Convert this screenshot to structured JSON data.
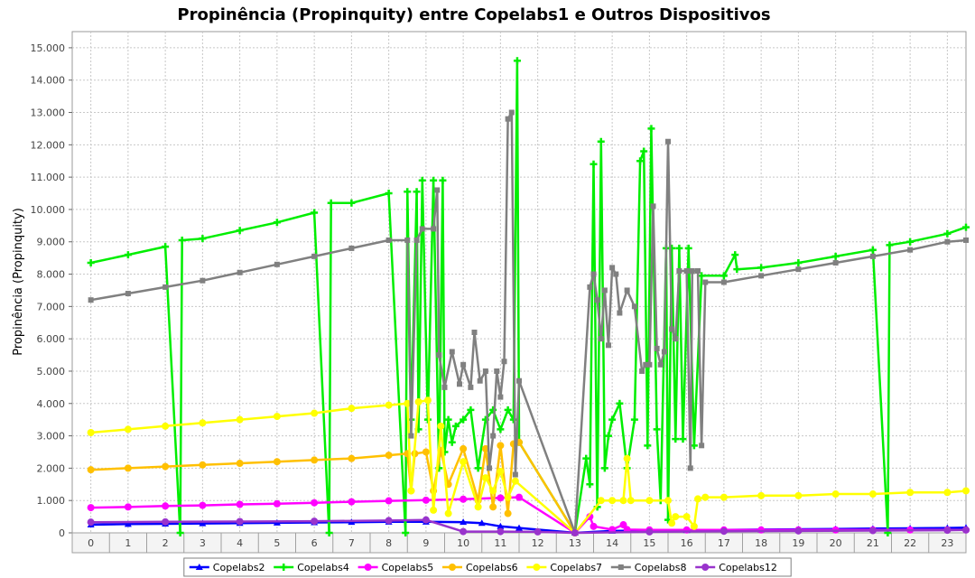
{
  "chart_data": {
    "type": "line",
    "title": "Propinência (Propinquity) entre Copelabs1 e Outros Dispositivos",
    "xlabel": "",
    "ylabel": "Propinência (Propinquity)",
    "categories": [
      "0",
      "1",
      "2",
      "3",
      "4",
      "5",
      "6",
      "7",
      "8",
      "9",
      "10",
      "11",
      "12",
      "13",
      "14",
      "15",
      "16",
      "17",
      "18",
      "19",
      "20",
      "21",
      "22",
      "23"
    ],
    "ylim": [
      0,
      15500
    ],
    "yticks": [
      0,
      1000,
      2000,
      3000,
      4000,
      5000,
      6000,
      7000,
      8000,
      9000,
      10000,
      11000,
      12000,
      13000,
      14000,
      15000
    ],
    "ytick_labels": [
      "0",
      "1.000",
      "2.000",
      "3.000",
      "4.000",
      "5.000",
      "6.000",
      "7.000",
      "8.000",
      "9.000",
      "10.000",
      "11.000",
      "12.000",
      "13.000",
      "14.000",
      "15.000"
    ],
    "grid": true,
    "legend_position": "bottom",
    "series": [
      {
        "name": "Copelabs2",
        "color": "#0000ff",
        "marker": "triangle",
        "points": [
          [
            0,
            250
          ],
          [
            1,
            270
          ],
          [
            2,
            280
          ],
          [
            3,
            290
          ],
          [
            4,
            300
          ],
          [
            5,
            310
          ],
          [
            6,
            320
          ],
          [
            7,
            330
          ],
          [
            8,
            340
          ],
          [
            9,
            340
          ],
          [
            10,
            330
          ],
          [
            10.5,
            300
          ],
          [
            11,
            200
          ],
          [
            11.5,
            150
          ],
          [
            13,
            0
          ],
          [
            14,
            60
          ],
          [
            15,
            70
          ],
          [
            16,
            80
          ],
          [
            17,
            90
          ],
          [
            18,
            100
          ],
          [
            19,
            110
          ],
          [
            20,
            120
          ],
          [
            21,
            130
          ],
          [
            22,
            140
          ],
          [
            23,
            150
          ],
          [
            23.5,
            160
          ]
        ]
      },
      {
        "name": "Copelabs4",
        "color": "#00ee00",
        "marker": "plus",
        "points": [
          [
            0,
            8350
          ],
          [
            1,
            8600
          ],
          [
            2,
            8850
          ],
          [
            2.4,
            0
          ],
          [
            2.45,
            9050
          ],
          [
            3,
            9100
          ],
          [
            4,
            9350
          ],
          [
            5,
            9600
          ],
          [
            6,
            9900
          ],
          [
            6.4,
            0
          ],
          [
            6.45,
            10200
          ],
          [
            7,
            10200
          ],
          [
            8,
            10500
          ],
          [
            8.45,
            0
          ],
          [
            8.5,
            10550
          ],
          [
            8.6,
            3500
          ],
          [
            8.75,
            10550
          ],
          [
            8.8,
            3200
          ],
          [
            8.9,
            10900
          ],
          [
            9.05,
            3500
          ],
          [
            9.2,
            10900
          ],
          [
            9.35,
            2000
          ],
          [
            9.45,
            10900
          ],
          [
            9.5,
            2500
          ],
          [
            9.6,
            3500
          ],
          [
            9.7,
            2800
          ],
          [
            9.8,
            3300
          ],
          [
            10,
            3500
          ],
          [
            10.2,
            3800
          ],
          [
            10.4,
            2000
          ],
          [
            10.6,
            3500
          ],
          [
            10.8,
            3800
          ],
          [
            11,
            3200
          ],
          [
            11.2,
            3800
          ],
          [
            11.35,
            3500
          ],
          [
            11.45,
            14600
          ],
          [
            11.5,
            2800
          ],
          [
            13,
            0
          ],
          [
            13.3,
            2300
          ],
          [
            13.4,
            1500
          ],
          [
            13.5,
            11400
          ],
          [
            13.6,
            800
          ],
          [
            13.7,
            12100
          ],
          [
            13.8,
            2000
          ],
          [
            13.9,
            3000
          ],
          [
            14,
            3500
          ],
          [
            14.2,
            4000
          ],
          [
            14.4,
            2000
          ],
          [
            14.6,
            3500
          ],
          [
            14.75,
            11500
          ],
          [
            14.85,
            11800
          ],
          [
            14.95,
            2700
          ],
          [
            15.05,
            12500
          ],
          [
            15.2,
            3200
          ],
          [
            15.3,
            1000
          ],
          [
            15.45,
            8800
          ],
          [
            15.5,
            400
          ],
          [
            15.6,
            8800
          ],
          [
            15.7,
            2900
          ],
          [
            15.8,
            8800
          ],
          [
            15.9,
            2900
          ],
          [
            16.05,
            8800
          ],
          [
            16.2,
            2700
          ],
          [
            16.4,
            7950
          ],
          [
            17,
            7950
          ],
          [
            17.3,
            8600
          ],
          [
            17.35,
            8150
          ],
          [
            18,
            8200
          ],
          [
            19,
            8350
          ],
          [
            20,
            8550
          ],
          [
            21,
            8750
          ],
          [
            21.4,
            0
          ],
          [
            21.45,
            8900
          ],
          [
            22,
            9000
          ],
          [
            23,
            9250
          ],
          [
            23.5,
            9450
          ]
        ]
      },
      {
        "name": "Copelabs5",
        "color": "#ff00ff",
        "marker": "circle",
        "points": [
          [
            0,
            780
          ],
          [
            1,
            800
          ],
          [
            2,
            830
          ],
          [
            3,
            850
          ],
          [
            4,
            880
          ],
          [
            5,
            900
          ],
          [
            6,
            930
          ],
          [
            7,
            960
          ],
          [
            8,
            990
          ],
          [
            9,
            1010
          ],
          [
            10,
            1040
          ],
          [
            11,
            1080
          ],
          [
            11.5,
            1100
          ],
          [
            13,
            0
          ],
          [
            13.4,
            500
          ],
          [
            13.5,
            200
          ],
          [
            14,
            100
          ],
          [
            14.3,
            250
          ],
          [
            14.4,
            100
          ],
          [
            15,
            90
          ],
          [
            16,
            90
          ],
          [
            17,
            90
          ],
          [
            18,
            90
          ],
          [
            19,
            90
          ],
          [
            20,
            90
          ],
          [
            21,
            90
          ],
          [
            22,
            90
          ],
          [
            23,
            90
          ],
          [
            23.5,
            90
          ]
        ]
      },
      {
        "name": "Copelabs6",
        "color": "#ffc000",
        "marker": "circle",
        "points": [
          [
            0,
            1950
          ],
          [
            1,
            2000
          ],
          [
            2,
            2050
          ],
          [
            3,
            2100
          ],
          [
            4,
            2150
          ],
          [
            5,
            2200
          ],
          [
            6,
            2250
          ],
          [
            7,
            2300
          ],
          [
            8,
            2400
          ],
          [
            8.5,
            2450
          ],
          [
            8.6,
            1300
          ],
          [
            8.7,
            2450
          ],
          [
            9,
            2500
          ],
          [
            9.2,
            1300
          ],
          [
            9.4,
            2550
          ],
          [
            9.6,
            1500
          ],
          [
            10,
            2600
          ],
          [
            10.4,
            1000
          ],
          [
            10.6,
            2600
          ],
          [
            10.8,
            800
          ],
          [
            11,
            2700
          ],
          [
            11.2,
            600
          ],
          [
            11.35,
            2750
          ],
          [
            11.5,
            2800
          ],
          [
            13,
            0
          ]
        ]
      },
      {
        "name": "Copelabs7",
        "color": "#ffff00",
        "marker": "circle",
        "points": [
          [
            0,
            3100
          ],
          [
            1,
            3200
          ],
          [
            2,
            3300
          ],
          [
            3,
            3400
          ],
          [
            4,
            3500
          ],
          [
            5,
            3600
          ],
          [
            6,
            3700
          ],
          [
            7,
            3850
          ],
          [
            8,
            3950
          ],
          [
            8.5,
            4000
          ],
          [
            8.6,
            1300
          ],
          [
            8.8,
            4050
          ],
          [
            9.05,
            4100
          ],
          [
            9.2,
            700
          ],
          [
            9.4,
            3300
          ],
          [
            9.6,
            600
          ],
          [
            10,
            2200
          ],
          [
            10.4,
            800
          ],
          [
            10.6,
            1700
          ],
          [
            10.8,
            1300
          ],
          [
            11,
            1900
          ],
          [
            11.2,
            1100
          ],
          [
            11.4,
            1600
          ],
          [
            13,
            0
          ],
          [
            13.7,
            1000
          ],
          [
            14,
            1000
          ],
          [
            14.3,
            1000
          ],
          [
            14.4,
            2300
          ],
          [
            14.5,
            1000
          ],
          [
            15,
            1000
          ],
          [
            15.5,
            1000
          ],
          [
            15.6,
            300
          ],
          [
            15.7,
            500
          ],
          [
            16,
            500
          ],
          [
            16.2,
            200
          ],
          [
            16.3,
            1050
          ],
          [
            16.5,
            1100
          ],
          [
            17,
            1100
          ],
          [
            18,
            1150
          ],
          [
            19,
            1150
          ],
          [
            20,
            1200
          ],
          [
            21,
            1200
          ],
          [
            22,
            1250
          ],
          [
            23,
            1250
          ],
          [
            23.5,
            1300
          ]
        ]
      },
      {
        "name": "Copelabs8",
        "color": "#808080",
        "marker": "square",
        "points": [
          [
            0,
            7200
          ],
          [
            1,
            7400
          ],
          [
            2,
            7600
          ],
          [
            3,
            7800
          ],
          [
            4,
            8050
          ],
          [
            5,
            8300
          ],
          [
            6,
            8550
          ],
          [
            7,
            8800
          ],
          [
            8,
            9050
          ],
          [
            8.5,
            9050
          ],
          [
            8.6,
            3000
          ],
          [
            8.75,
            9050
          ],
          [
            8.9,
            9400
          ],
          [
            9.2,
            9400
          ],
          [
            9.3,
            10600
          ],
          [
            9.35,
            5500
          ],
          [
            9.5,
            4500
          ],
          [
            9.7,
            5600
          ],
          [
            9.9,
            4600
          ],
          [
            10,
            5200
          ],
          [
            10.2,
            4500
          ],
          [
            10.3,
            6200
          ],
          [
            10.45,
            4700
          ],
          [
            10.6,
            5000
          ],
          [
            10.7,
            2000
          ],
          [
            10.8,
            3000
          ],
          [
            10.9,
            5000
          ],
          [
            11,
            4200
          ],
          [
            11.1,
            5300
          ],
          [
            11.2,
            12800
          ],
          [
            11.3,
            13000
          ],
          [
            11.4,
            1800
          ],
          [
            11.5,
            4700
          ],
          [
            13,
            0
          ],
          [
            13.4,
            7600
          ],
          [
            13.5,
            8000
          ],
          [
            13.6,
            7200
          ],
          [
            13.7,
            6000
          ],
          [
            13.8,
            7500
          ],
          [
            13.9,
            5800
          ],
          [
            14,
            8200
          ],
          [
            14.1,
            8000
          ],
          [
            14.2,
            6800
          ],
          [
            14.4,
            7500
          ],
          [
            14.6,
            7000
          ],
          [
            14.8,
            5000
          ],
          [
            14.9,
            5200
          ],
          [
            15,
            5200
          ],
          [
            15.1,
            10100
          ],
          [
            15.2,
            5700
          ],
          [
            15.3,
            5200
          ],
          [
            15.4,
            5600
          ],
          [
            15.5,
            12100
          ],
          [
            15.6,
            6300
          ],
          [
            15.7,
            6000
          ],
          [
            15.8,
            8100
          ],
          [
            16,
            8100
          ],
          [
            16.1,
            2000
          ],
          [
            16.15,
            8100
          ],
          [
            16.3,
            8100
          ],
          [
            16.4,
            2700
          ],
          [
            16.5,
            7750
          ],
          [
            17,
            7750
          ],
          [
            18,
            7950
          ],
          [
            19,
            8150
          ],
          [
            20,
            8350
          ],
          [
            21,
            8550
          ],
          [
            22,
            8750
          ],
          [
            23,
            9000
          ],
          [
            23.5,
            9050
          ]
        ]
      },
      {
        "name": "Copelabs12",
        "color": "#9933cc",
        "marker": "circle",
        "points": [
          [
            0,
            330
          ],
          [
            2,
            340
          ],
          [
            4,
            350
          ],
          [
            6,
            360
          ],
          [
            8,
            380
          ],
          [
            9,
            400
          ],
          [
            10,
            40
          ],
          [
            11,
            40
          ],
          [
            12,
            30
          ],
          [
            13,
            0
          ],
          [
            15,
            30
          ],
          [
            17,
            50
          ],
          [
            19,
            60
          ],
          [
            21,
            70
          ],
          [
            23,
            80
          ],
          [
            23.5,
            90
          ]
        ]
      }
    ]
  }
}
